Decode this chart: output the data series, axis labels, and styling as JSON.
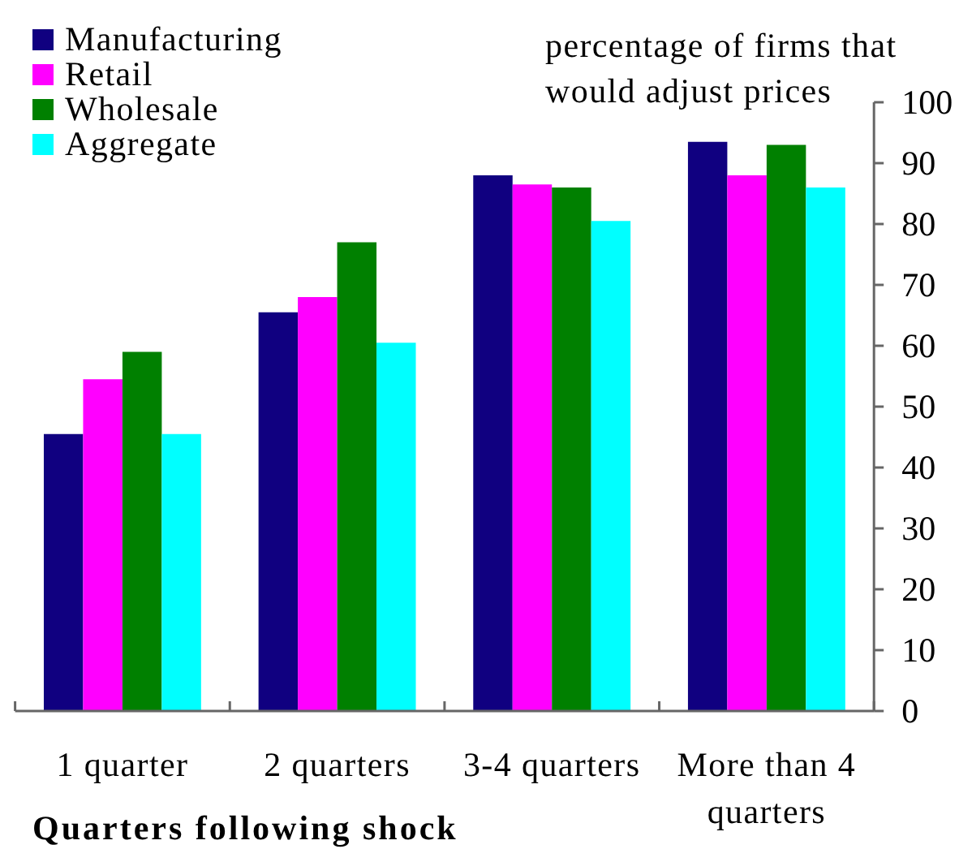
{
  "chart_data": {
    "type": "bar",
    "xlabel": "Quarters following shock",
    "ylabel": "percentage of firms that would adjust prices",
    "categories": [
      "1 quarter",
      "2 quarters",
      "3-4 quarters",
      "More than 4 quarters"
    ],
    "series": [
      {
        "name": "Manufacturing",
        "color": "#100080",
        "values": [
          45.5,
          65.5,
          88,
          93.5
        ]
      },
      {
        "name": "Retail",
        "color": "#ff00ff",
        "values": [
          54.5,
          68,
          86.5,
          88
        ]
      },
      {
        "name": "Wholesale",
        "color": "#008000",
        "values": [
          59,
          77,
          86,
          93
        ]
      },
      {
        "name": "Aggregate",
        "color": "#00ffff",
        "values": [
          45.5,
          60.5,
          80.5,
          86
        ]
      }
    ],
    "ylim": [
      0,
      100
    ],
    "yticks": [
      0,
      10,
      20,
      30,
      40,
      50,
      60,
      70,
      80,
      90,
      100
    ],
    "legend": "top left"
  }
}
